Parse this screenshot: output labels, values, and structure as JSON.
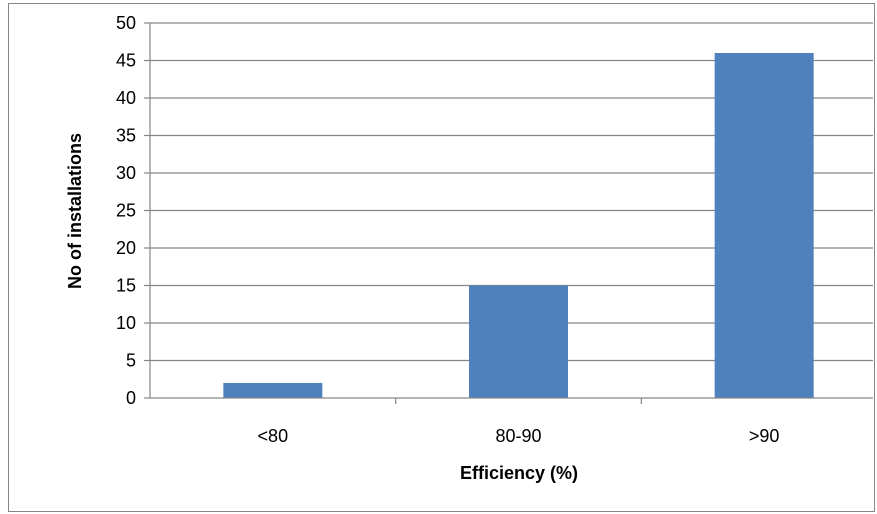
{
  "chart_data": {
    "type": "bar",
    "categories": [
      "<80",
      "80-90",
      ">90"
    ],
    "values": [
      2,
      15,
      46
    ],
    "xlabel": "Efficiency (%)",
    "ylabel": "No of installations",
    "ylim": [
      0,
      50
    ],
    "yticks": [
      0,
      5,
      10,
      15,
      20,
      25,
      30,
      35,
      40,
      45,
      50
    ],
    "grid": "horizontal",
    "legend": "none",
    "colors": {
      "bar": "#4F81BD",
      "grid": "#868686",
      "axis": "#868686"
    }
  }
}
